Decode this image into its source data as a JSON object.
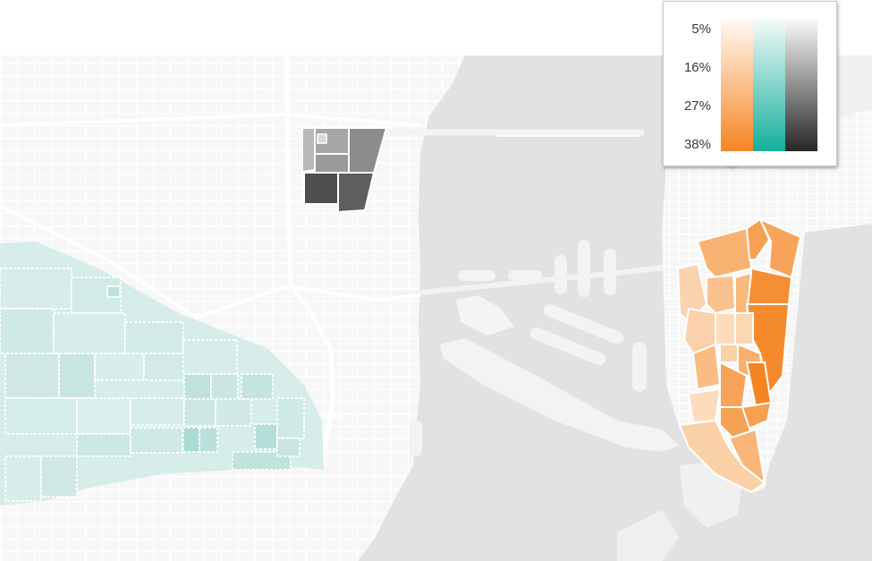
{
  "legend": {
    "labels": [
      "5%",
      "16%",
      "27%",
      "38%"
    ],
    "ramps": [
      {
        "name": "orange-ramp",
        "light": "#fffaf5",
        "dark": "#f58523"
      },
      {
        "name": "teal-ramp",
        "light": "#f5fbfa",
        "dark": "#14ae9b"
      },
      {
        "name": "gray-ramp",
        "light": "#fafafa",
        "dark": "#262626"
      }
    ]
  },
  "colors": {
    "land": "#f7f7f7",
    "water": "#e2e2e2",
    "streets": "#ffffff",
    "teal_fill": "#cfe9e6",
    "teal_dark": "#a9dcd5",
    "gray_light": "#a9a9a9",
    "gray_dark": "#4a4a4a",
    "orange_light": "#fbd3ad",
    "orange_mid": "#f7a760",
    "orange_dark": "#f58523"
  }
}
